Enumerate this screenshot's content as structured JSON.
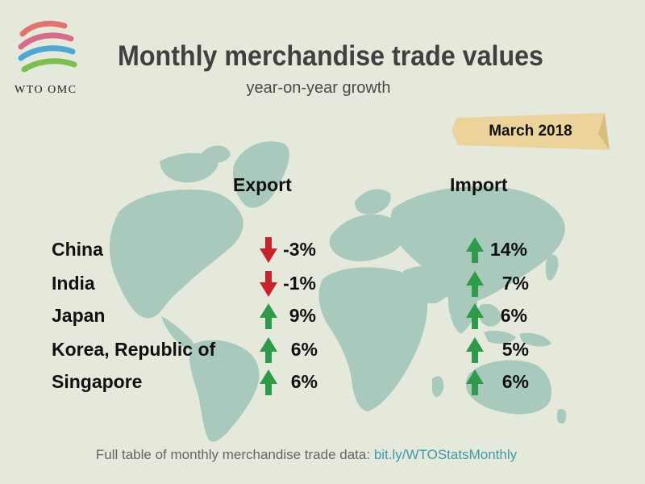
{
  "logo": {
    "text": "WTO OMC"
  },
  "title": "Monthly merchandise trade values",
  "subtitle": "year-on-year growth",
  "period": "March 2018",
  "columns": {
    "export": "Export",
    "import": "Import"
  },
  "rows": [
    {
      "country": "China",
      "export": {
        "value": "-3%",
        "direction": "down"
      },
      "import": {
        "value": "14%",
        "direction": "up"
      }
    },
    {
      "country": "India",
      "export": {
        "value": "-1%",
        "direction": "down"
      },
      "import": {
        "value": "7%",
        "direction": "up"
      }
    },
    {
      "country": "Japan",
      "export": {
        "value": "9%",
        "direction": "up"
      },
      "import": {
        "value": "6%",
        "direction": "up"
      }
    },
    {
      "country": "Korea, Republic of",
      "export": {
        "value": "6%",
        "direction": "up"
      },
      "import": {
        "value": "5%",
        "direction": "up"
      }
    },
    {
      "country": "Singapore",
      "export": {
        "value": "6%",
        "direction": "up"
      },
      "import": {
        "value": "6%",
        "direction": "up"
      }
    }
  ],
  "footer": {
    "text": "Full table of monthly merchandise trade data:",
    "link": "bit.ly/WTOStatsMonthly"
  },
  "colors": {
    "background": "#e4e9dc",
    "map": "#a9c9bd",
    "up": "#2e9b4a",
    "down": "#c8222b",
    "ribbon": "#ecd39a",
    "link": "#3e9aa8"
  }
}
